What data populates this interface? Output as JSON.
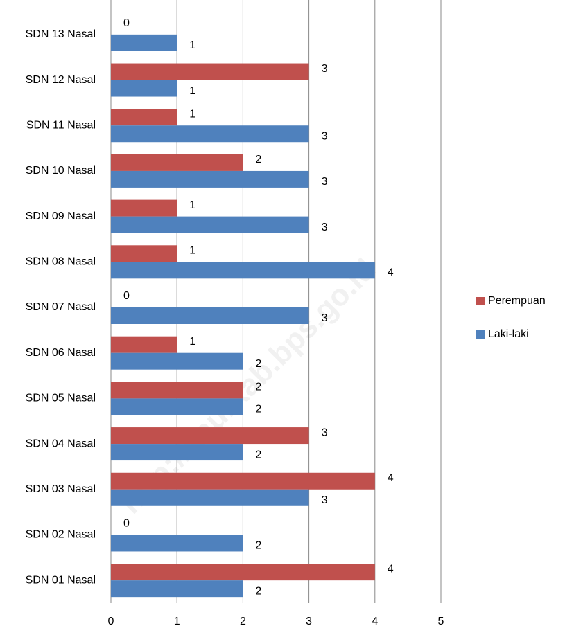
{
  "chart_data": {
    "type": "hbar",
    "categories": [
      "SDN 01 Nasal",
      "SDN 02 Nasal",
      "SDN 03 Nasal",
      "SDN 04 Nasal",
      "SDN 05 Nasal",
      "SDN 06 Nasal",
      "SDN 07 Nasal",
      "SDN 08 Nasal",
      "SDN 09 Nasal",
      "SDN 10 Nasal",
      "SDN 11 Nasal",
      "SDN 12 Nasal",
      "SDN 13 Nasal"
    ],
    "series": [
      {
        "name": "Perempuan",
        "color": "#c0504d",
        "values": [
          4,
          0,
          4,
          3,
          2,
          1,
          0,
          1,
          1,
          2,
          1,
          3,
          0
        ]
      },
      {
        "name": "Laki-laki",
        "color": "#4f81bd",
        "values": [
          2,
          2,
          3,
          2,
          2,
          2,
          3,
          4,
          3,
          3,
          3,
          1,
          1
        ]
      }
    ],
    "xlim": [
      0,
      5
    ],
    "xticks": [
      0,
      1,
      2,
      3,
      4,
      5
    ],
    "grid": true,
    "legend": "right",
    "watermark": "http://kaurkab.bps.go.id"
  }
}
